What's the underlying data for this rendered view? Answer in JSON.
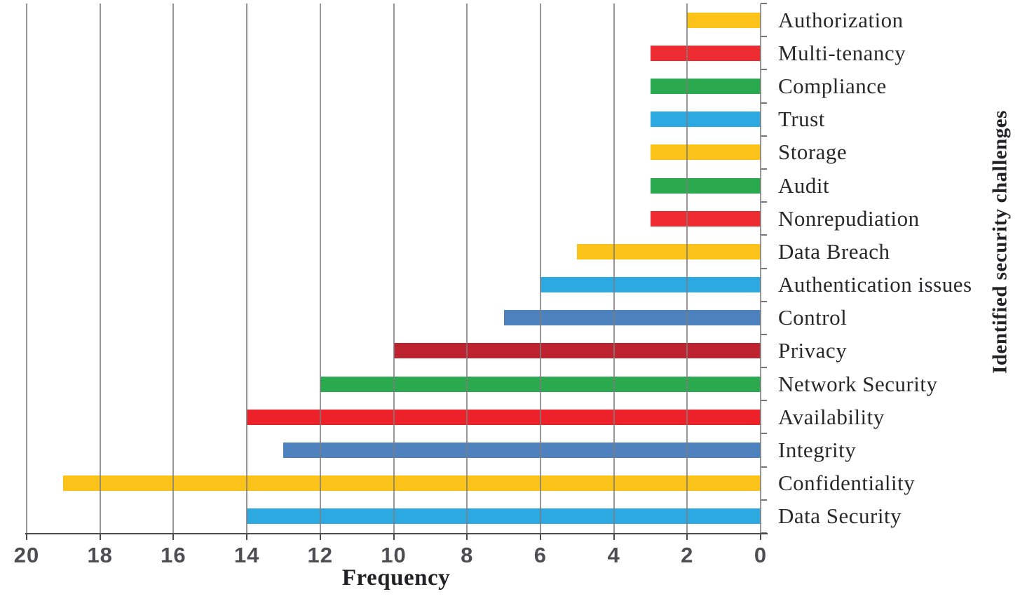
{
  "chart_data": {
    "type": "bar",
    "orientation": "horizontal",
    "title": "",
    "xlabel": "Frequency",
    "ylabel": "Identified security challenges",
    "x_axis": {
      "min": 0,
      "max": 20,
      "ticks": [
        20,
        18,
        16,
        14,
        12,
        10,
        8,
        6,
        4,
        2,
        0
      ],
      "reversed": true,
      "grid": true
    },
    "categories": [
      "Authorization",
      "Multi-tenancy",
      "Compliance",
      "Trust",
      "Storage",
      "Audit",
      "Nonrepudiation",
      "Data Breach",
      "Authentication issues",
      "Control",
      "Privacy",
      "Network Security",
      "Availability",
      "Integrity",
      "Confidentiality",
      "Data Security"
    ],
    "values": [
      2,
      3,
      3,
      3,
      3,
      3,
      3,
      5,
      6,
      7,
      10,
      12,
      14,
      13,
      19,
      14
    ],
    "bar_colors": [
      "#FBC21A",
      "#ED2B30",
      "#2BA94E",
      "#2BA9E0",
      "#FBC21A",
      "#2BA94E",
      "#ED2B30",
      "#FBC21A",
      "#2BA9E0",
      "#4E82BE",
      "#BE2330",
      "#2BA94E",
      "#ED2129",
      "#4E82BE",
      "#FBC21A",
      "#2BA9E0"
    ],
    "legend": null
  },
  "colors": {
    "gridline": "#7d7d7d",
    "axis": "#4c4c4e",
    "tick_label": "#4e4e52",
    "category_label": "#28282a",
    "background": "#ffffff"
  }
}
